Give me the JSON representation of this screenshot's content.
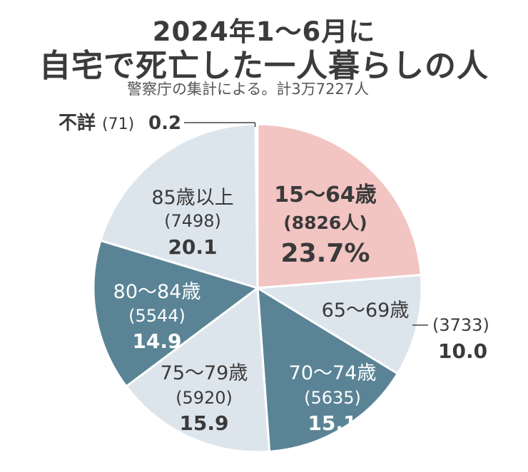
{
  "header": {
    "title_line1": "2024年1～6月に",
    "title_line2": "自宅で死亡した一人暮らしの人",
    "subtitle": "警察庁の集計による。計3万7227人"
  },
  "colors": {
    "highlight": "#f2c4c2",
    "light": "#dde5ec",
    "dark": "#5a8496",
    "edge": "#ffffff",
    "text_dark_bg": "#ffffff",
    "text_light_bg": "#3a3a3a"
  },
  "chart_data": {
    "type": "pie",
    "title": "2024年1～6月に自宅で死亡した一人暮らしの人",
    "total_label": "計3万7227人",
    "unit": "%",
    "slices": [
      {
        "name": "15～64歳",
        "count": "(8826人)",
        "percent": 23.7,
        "percent_label": "23.7%",
        "style": "highlight",
        "bold": true
      },
      {
        "name": "65～69歳",
        "count": "(3733)",
        "percent": 10.0,
        "percent_label": "10.0",
        "style": "light",
        "bold": false
      },
      {
        "name": "70～74歳",
        "count": "(5635)",
        "percent": 15.1,
        "percent_label": "15.1",
        "style": "dark",
        "bold": false
      },
      {
        "name": "75～79歳",
        "count": "(5920)",
        "percent": 15.9,
        "percent_label": "15.9",
        "style": "light",
        "bold": false
      },
      {
        "name": "80～84歳",
        "count": "(5544)",
        "percent": 14.9,
        "percent_label": "14.9",
        "style": "dark",
        "bold": false
      },
      {
        "name": "85歳以上",
        "count": "(7498)",
        "percent": 20.1,
        "percent_label": "20.1",
        "style": "light",
        "bold": false
      },
      {
        "name": "不詳",
        "count": "(71)",
        "percent": 0.2,
        "percent_label": "0.2",
        "style": "dark",
        "bold": false
      }
    ]
  }
}
